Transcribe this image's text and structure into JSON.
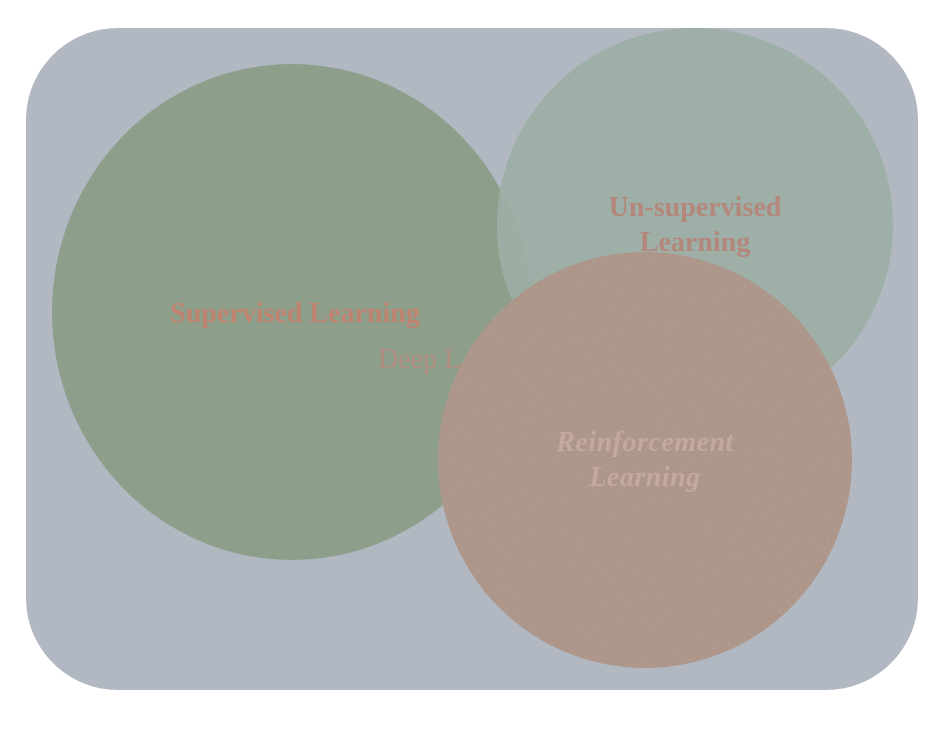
{
  "diagram": {
    "sets": [
      {
        "id": "supervised",
        "label": "Supervised Learning",
        "color": "#8d9f8b"
      },
      {
        "id": "unsupervised",
        "label": "Un-supervised Learning",
        "color": "#9cafa6"
      },
      {
        "id": "reinforcement",
        "label": "Reinforcement Learning",
        "color": "#a38677"
      }
    ],
    "overlap_label": "Deep L",
    "background_color": "#b1b8c1"
  }
}
